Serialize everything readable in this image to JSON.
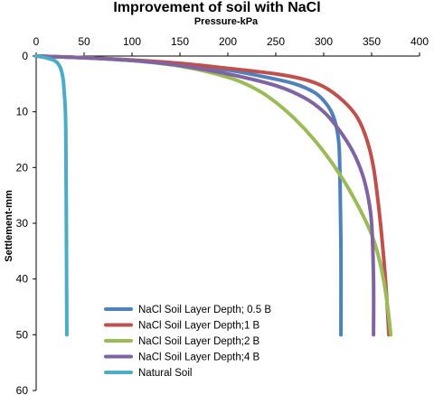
{
  "chart_data": {
    "type": "line",
    "title": "Improvement of soil with NaCl",
    "xlabel": "Pressure-kPa",
    "ylabel": "Settlement-mm",
    "xlim": [
      0,
      400
    ],
    "ylim": [
      0,
      60
    ],
    "y_inverted": true,
    "x_axis_position": "top",
    "x_ticks": [
      0,
      50,
      100,
      150,
      200,
      250,
      300,
      350,
      400
    ],
    "y_ticks": [
      0,
      10,
      20,
      30,
      40,
      50,
      60
    ],
    "grid": false,
    "legend_position": "bottom-left",
    "series": [
      {
        "name": "NaCl Soil Layer Depth; 0.5 B",
        "color": "#4f81bd",
        "x": [
          0,
          50,
          100,
          150,
          200,
          240,
          270,
          290,
          300,
          308,
          313,
          316,
          317,
          318,
          318
        ],
        "y": [
          0,
          0.3,
          0.8,
          1.5,
          2.5,
          3.8,
          5.0,
          6.5,
          8.0,
          10.0,
          12.5,
          16.0,
          22.0,
          35.0,
          50.0
        ]
      },
      {
        "name": "NaCl Soil Layer Depth;1 B",
        "color": "#c0504d",
        "x": [
          0,
          50,
          100,
          150,
          200,
          250,
          280,
          300,
          320,
          335,
          345,
          352,
          358,
          363,
          366,
          368
        ],
        "y": [
          0,
          0.3,
          0.7,
          1.3,
          2.2,
          3.2,
          4.2,
          5.5,
          8.0,
          11.0,
          15.0,
          20.0,
          28.0,
          37.0,
          44.0,
          50.0
        ]
      },
      {
        "name": "NaCl Soil Layer Depth;2 B",
        "color": "#9bbb59",
        "x": [
          0,
          50,
          100,
          150,
          200,
          230,
          250,
          270,
          290,
          310,
          330,
          350,
          360,
          366,
          370
        ],
        "y": [
          0,
          0.3,
          0.8,
          1.8,
          3.8,
          6.0,
          8.3,
          11.3,
          15.0,
          19.5,
          25.0,
          32.0,
          38.0,
          44.0,
          50.0
        ]
      },
      {
        "name": "NaCl Soil Layer Depth;4 B",
        "color": "#8064a2",
        "x": [
          0,
          50,
          100,
          150,
          200,
          250,
          280,
          300,
          315,
          330,
          340,
          346,
          350,
          352,
          352
        ],
        "y": [
          0,
          0.3,
          0.8,
          1.7,
          3.2,
          5.3,
          7.5,
          10.0,
          13.0,
          17.0,
          21.0,
          25.0,
          30.0,
          40.0,
          50.0
        ]
      },
      {
        "name": "Natural Soil",
        "color": "#4bacc6",
        "x": [
          0,
          10,
          20,
          25,
          28,
          29.5,
          30.5,
          31,
          31.5,
          32
        ],
        "y": [
          0,
          0.3,
          0.9,
          2.0,
          4.0,
          7.0,
          10.0,
          15.0,
          30.0,
          50.0
        ]
      }
    ]
  }
}
